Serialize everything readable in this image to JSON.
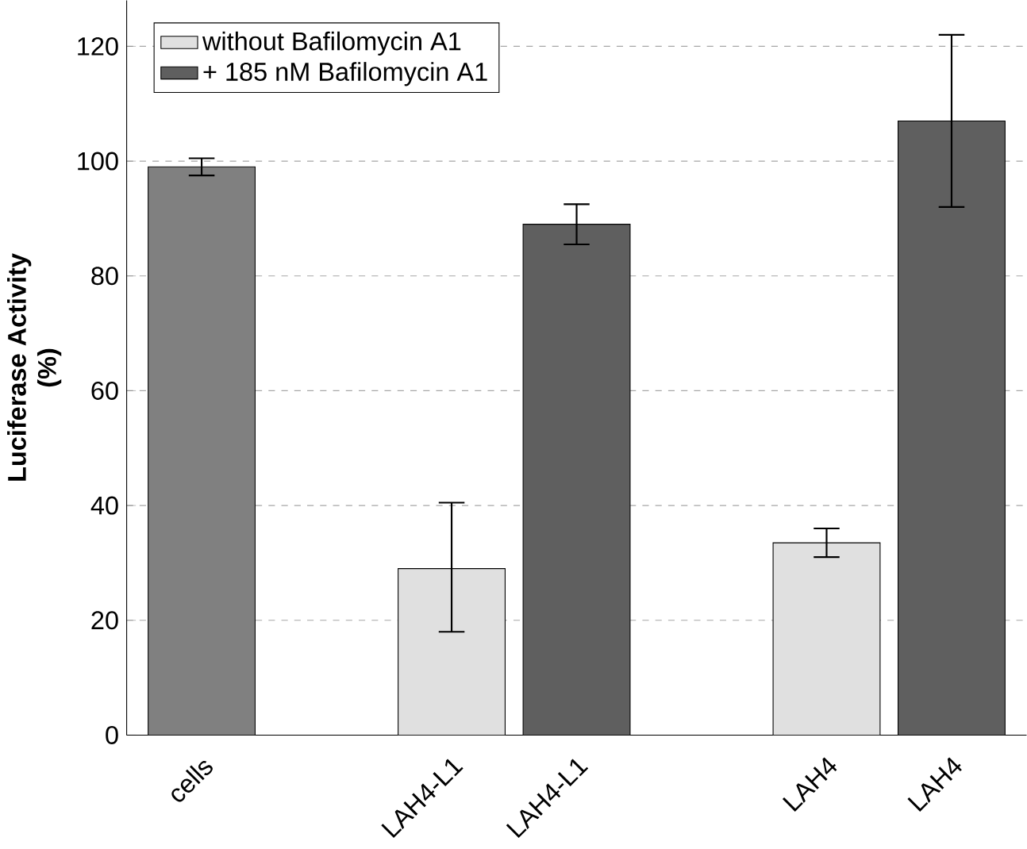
{
  "chart_data": {
    "type": "bar",
    "ylabel": "Luciferase Activity\n(%)",
    "categories": [
      "cells",
      null,
      "LAH4-L1",
      "LAH4-L1",
      null,
      "LAH4",
      "LAH4"
    ],
    "series": [
      {
        "color": "#808080",
        "values": [
          99,
          null,
          null,
          null,
          null,
          null,
          null
        ],
        "errors": [
          [
            97.5,
            100.5
          ],
          null,
          null,
          null,
          null,
          null,
          null
        ]
      },
      {
        "name": "without Bafilomycin A1",
        "color": "#e0e0e0",
        "values": [
          null,
          null,
          29,
          null,
          null,
          33.5,
          null
        ],
        "errors": [
          null,
          null,
          [
            18,
            40.5
          ],
          null,
          null,
          [
            31,
            36
          ],
          null
        ]
      },
      {
        "name": "+ 185 nM Bafilomycin A1",
        "color": "#5f5f5f",
        "values": [
          null,
          null,
          null,
          89,
          null,
          null,
          107
        ],
        "errors": [
          null,
          null,
          null,
          [
            85.5,
            92.5
          ],
          null,
          null,
          [
            92,
            122
          ]
        ]
      }
    ],
    "ylim": [
      0,
      128
    ],
    "yticks": [
      0,
      20,
      40,
      60,
      80,
      100,
      120
    ],
    "grid": "y",
    "legend": "top left"
  }
}
